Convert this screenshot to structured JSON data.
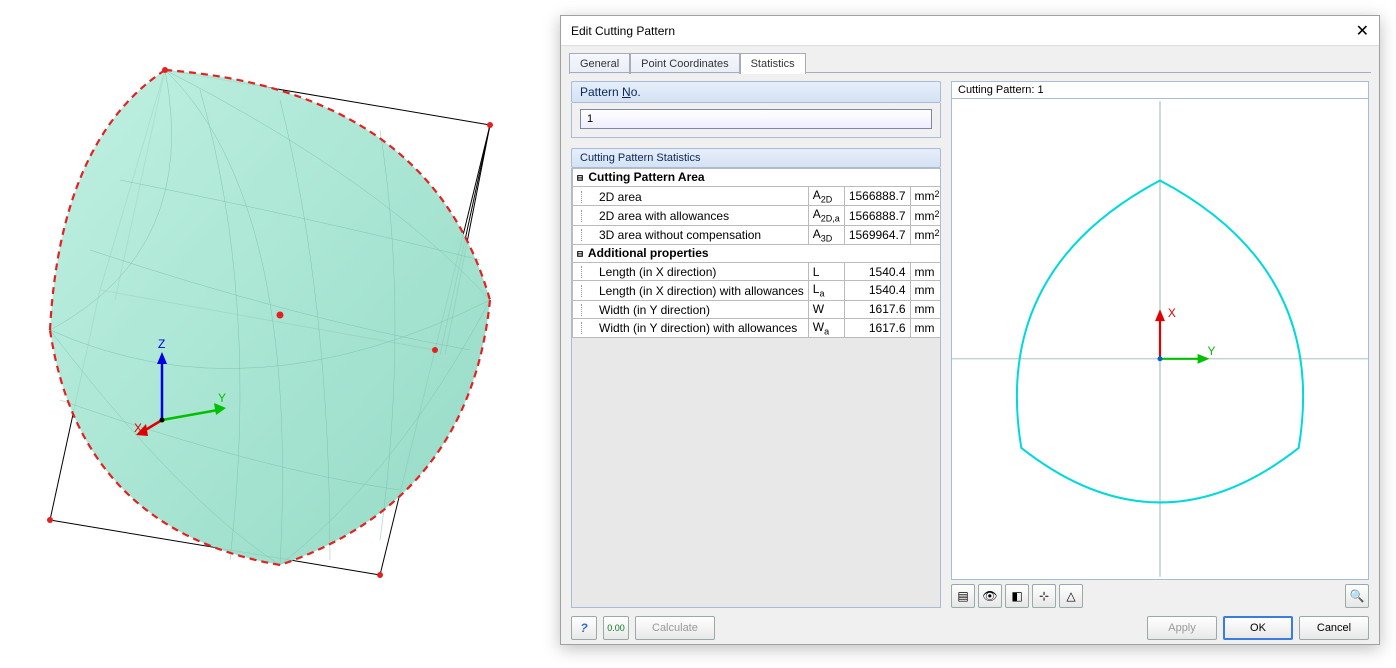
{
  "dialog": {
    "title": "Edit Cutting Pattern",
    "tabs": [
      "General",
      "Point Coordinates",
      "Statistics"
    ],
    "active_tab": 2,
    "pattern_no_label": "Pattern No.",
    "pattern_no_value": "1",
    "stats_section_label": "Cutting Pattern Statistics",
    "groups": [
      {
        "title": "Cutting Pattern Area",
        "rows": [
          {
            "name": "2D area",
            "sym": "A",
            "sub": "2D",
            "val": "1566888.7",
            "unit": "mm",
            "sup": "2"
          },
          {
            "name": "2D area with allowances",
            "sym": "A",
            "sub": "2D,a",
            "val": "1566888.7",
            "unit": "mm",
            "sup": "2"
          },
          {
            "name": "3D area without compensation",
            "sym": "A",
            "sub": "3D",
            "val": "1569964.7",
            "unit": "mm",
            "sup": "2"
          }
        ]
      },
      {
        "title": "Additional properties",
        "rows": [
          {
            "name": "Length (in X direction)",
            "sym": "L",
            "sub": "",
            "val": "1540.4",
            "unit": "mm",
            "sup": ""
          },
          {
            "name": "Length (in X direction) with allowances",
            "sym": "L",
            "sub": "a",
            "val": "1540.4",
            "unit": "mm",
            "sup": ""
          },
          {
            "name": "Width (in Y direction)",
            "sym": "W",
            "sub": "",
            "val": "1617.6",
            "unit": "mm",
            "sup": ""
          },
          {
            "name": "Width (in Y direction) with allowances",
            "sym": "W",
            "sub": "a",
            "val": "1617.6",
            "unit": "mm",
            "sup": ""
          }
        ]
      }
    ],
    "preview_label": "Cutting Pattern: 1",
    "buttons": {
      "calculate": "Calculate",
      "apply": "Apply",
      "ok": "OK",
      "cancel": "Cancel"
    }
  },
  "viewport3d": {
    "mesh_color": "#a8e6d4",
    "mesh_line_color": "#7bbfae",
    "wireframe_color": "#000000",
    "dashed_edge_color": "#e62020",
    "axis_x_color": "#e00000",
    "axis_y_color": "#00c000",
    "axis_z_color": "#0000e0",
    "axis_labels": {
      "x": "X",
      "y": "Y",
      "z": "Z"
    }
  },
  "preview2d": {
    "outline_color": "#00d9d9",
    "grid_color": "#9bb7b7",
    "axis_x_color": "#e00000",
    "axis_y_color": "#00c000",
    "axis_labels": {
      "x": "X",
      "y": "Y"
    }
  },
  "icon_row": [
    "layers-icon",
    "eye-icon",
    "eraser-icon",
    "axes-icon",
    "tent-icon",
    "search-icon"
  ]
}
